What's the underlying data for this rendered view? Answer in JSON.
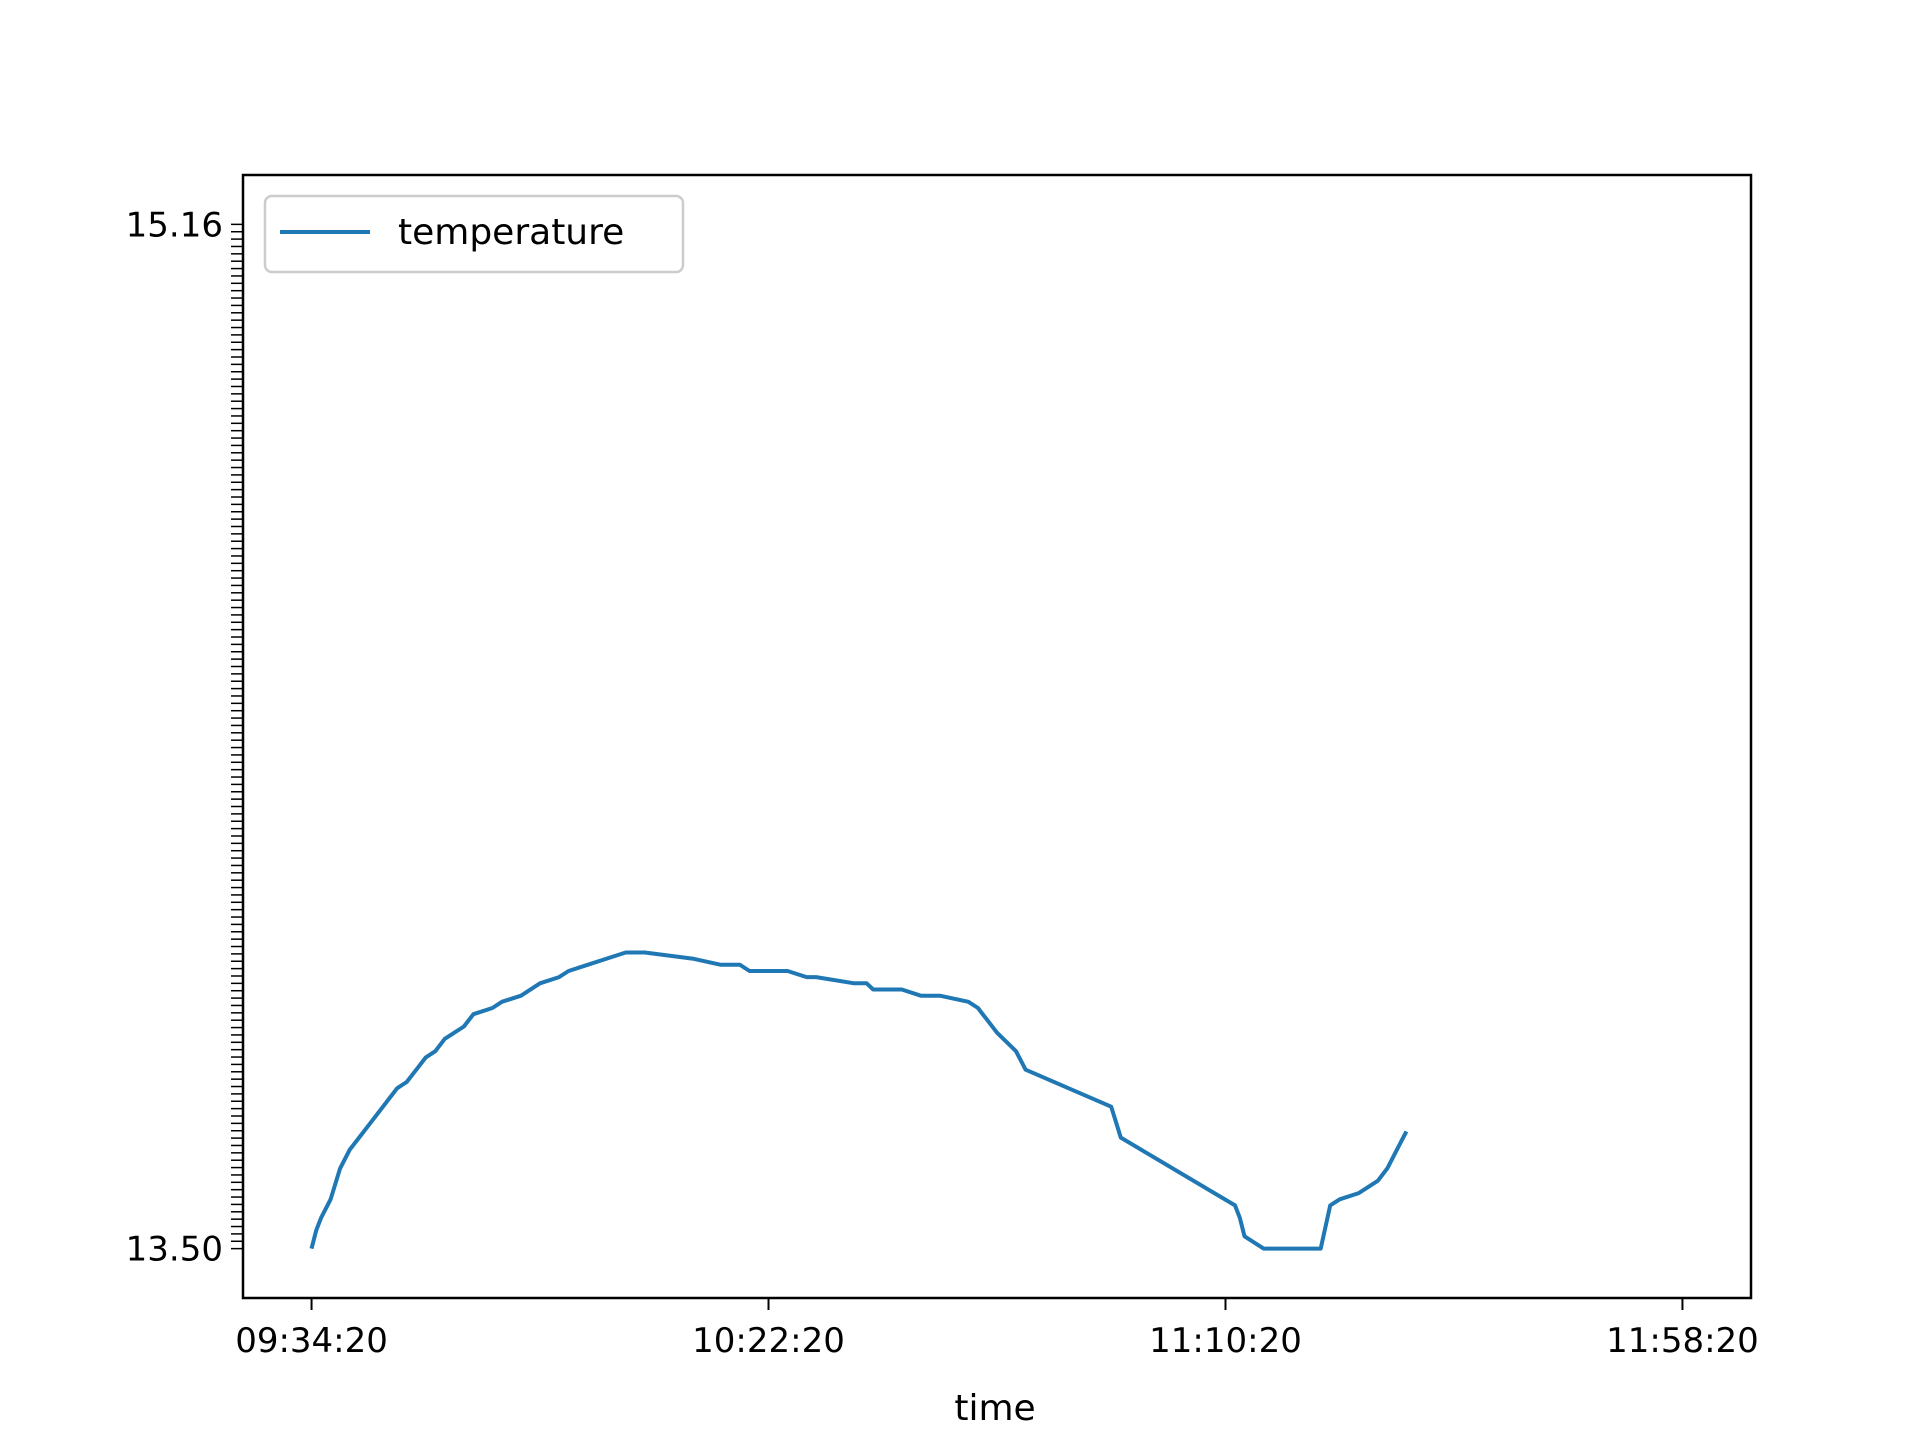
{
  "chart_data": {
    "type": "line",
    "title": "",
    "xlabel": "time",
    "ylabel": "",
    "x_tick_labels": [
      "09:34:20",
      "10:22:20",
      "11:10:20",
      "11:58:20"
    ],
    "x_tick_minutes": [
      0,
      48,
      96,
      144
    ],
    "xlim_minutes": [
      -7.2,
      151.2
    ],
    "y_tick_labels": [
      "13.50",
      "15.16"
    ],
    "ylim": [
      13.42,
      15.24
    ],
    "grid": false,
    "legend": {
      "position": "upper left",
      "entries": [
        "temperature"
      ]
    },
    "series": [
      {
        "name": "temperature",
        "color": "#1f77b4",
        "x_minutes": [
          0,
          0.5,
          1,
          2,
          3,
          4,
          5,
          6,
          7,
          8,
          9,
          10,
          11,
          12,
          13,
          14,
          15,
          16,
          17,
          19,
          20,
          22,
          24,
          26,
          27,
          29,
          31,
          33,
          35,
          40,
          43,
          45,
          46,
          50,
          52,
          52.6,
          53,
          57,
          58,
          58.3,
          59,
          62,
          64,
          66,
          69,
          70,
          70.5,
          71,
          72,
          74,
          75,
          84,
          85,
          97,
          97.5,
          98,
          100,
          100.5,
          101,
          103,
          104,
          105,
          105.5,
          106,
          107,
          108,
          110,
          111,
          112,
          113,
          114,
          115
        ],
        "values": [
          13.5,
          13.53,
          13.55,
          13.58,
          13.63,
          13.66,
          13.68,
          13.7,
          13.72,
          13.74,
          13.76,
          13.77,
          13.79,
          13.81,
          13.82,
          13.84,
          13.85,
          13.86,
          13.88,
          13.89,
          13.9,
          13.91,
          13.93,
          13.94,
          13.95,
          13.96,
          13.97,
          13.98,
          13.98,
          13.97,
          13.96,
          13.96,
          13.95,
          13.95,
          13.94,
          13.94,
          13.94,
          13.93,
          13.93,
          13.93,
          13.92,
          13.92,
          13.91,
          13.91,
          13.9,
          13.89,
          13.88,
          13.87,
          13.85,
          13.82,
          13.79,
          13.73,
          13.68,
          13.57,
          13.55,
          13.52,
          13.5,
          13.5,
          13.5,
          13.5,
          13.5,
          13.5,
          13.5,
          13.5,
          13.57,
          13.58,
          13.59,
          13.6,
          13.61,
          13.63,
          13.66,
          13.69
        ]
      }
    ]
  }
}
